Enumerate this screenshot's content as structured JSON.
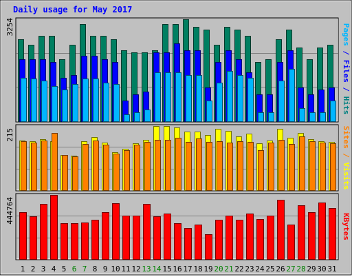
{
  "chart_data": {
    "type": "bar",
    "title": "Daily usage for May 2017",
    "categories": [
      "1",
      "2",
      "3",
      "4",
      "5",
      "6",
      "7",
      "8",
      "9",
      "10",
      "11",
      "12",
      "13",
      "14",
      "15",
      "16",
      "17",
      "18",
      "19",
      "20",
      "21",
      "22",
      "23",
      "24",
      "25",
      "26",
      "27",
      "28",
      "29",
      "30",
      "31"
    ],
    "weekend_days": [
      "6",
      "7",
      "13",
      "14",
      "20",
      "21",
      "27",
      "28"
    ],
    "panels": [
      {
        "id": "hits",
        "max_label": "3254",
        "ylim": [
          0,
          3254
        ],
        "axis_label": [
          {
            "text": "Pages",
            "color": "#00b6ff"
          },
          {
            "text": " / ",
            "color": "#0000ff"
          },
          {
            "text": "Files",
            "color": "#0000ff"
          },
          {
            "text": " / ",
            "color": "#0000ff"
          },
          {
            "text": "Hits",
            "color": "#008080"
          }
        ],
        "series": [
          {
            "name": "Hits",
            "color": "#007f61",
            "values": [
              2625,
              2447,
              2721,
              2721,
              1977,
              2447,
              3095,
              2721,
              2721,
              2625,
              2274,
              2196,
              2196,
              2274,
              3095,
              3095,
              3254,
              3016,
              2915,
              2447,
              3016,
              2915,
              2721,
              1899,
              1977,
              2625,
              2915,
              2351,
              1977,
              2351,
              2447
            ]
          },
          {
            "name": "Files",
            "color": "#0000ff",
            "values": [
              1977,
              1977,
              1977,
              1899,
              1395,
              1465,
              2084,
              2084,
              1977,
              1899,
              651,
              853,
              942,
              2196,
              2196,
              2476,
              2274,
              2274,
              1081,
              1899,
              2274,
              1977,
              1563,
              853,
              853,
              1899,
              2260,
              1081,
              853,
              1001,
              1081
            ]
          },
          {
            "name": "Pages",
            "color": "#00b6ff",
            "values": [
              1395,
              1353,
              1298,
              1116,
              1022,
              1197,
              1353,
              1353,
              1238,
              1197,
              229,
              296,
              367,
              1563,
              1563,
              1563,
              1465,
              1465,
              651,
              1238,
              1605,
              1465,
              1395,
              296,
              296,
              1298,
              1667,
              411,
              296,
              296,
              651
            ]
          }
        ]
      },
      {
        "id": "visits",
        "max_label": "215",
        "ylim": [
          0,
          215
        ],
        "axis_label": [
          {
            "text": "Sites",
            "color": "#ff8000"
          },
          {
            "text": " / ",
            "color": "#ff8000"
          },
          {
            "text": "Visits",
            "color": "#ffff00"
          }
        ],
        "series": [
          {
            "name": "Visits",
            "color": "#ffff00",
            "values": [
              167,
              163,
              172,
              165,
              117,
              115,
              165,
              178,
              159,
              128,
              139,
              158,
              169,
              215,
              215,
              211,
              196,
              196,
              185,
              205,
              199,
              181,
              189,
              158,
              167,
              205,
              176,
              193,
              171,
              163,
              161
            ]
          },
          {
            "name": "Sites",
            "color": "#ff8000",
            "values": [
              163,
              159,
              167,
              191,
              117,
              113,
              155,
              167,
              153,
              123,
              134,
              153,
              161,
              169,
              169,
              176,
              161,
              173,
              161,
              165,
              159,
              163,
              161,
              134,
              159,
              169,
              156,
              180,
              165,
              159,
              158
            ]
          }
        ]
      },
      {
        "id": "kbytes",
        "max_label": "444764",
        "ylim": [
          0,
          444764
        ],
        "axis_label": [
          {
            "text": "KBytes",
            "color": "#ff0000"
          }
        ],
        "series": [
          {
            "name": "KBytes",
            "color": "#ff0000",
            "values": [
              327350,
              298886,
              383049,
              444764,
              246871,
              246871,
              254293,
              270438,
              325873,
              387380,
              303235,
              303235,
              384290,
              298886,
              315331,
              246871,
              215180,
              237838,
              173498,
              270438,
              303235,
              270438,
              315331,
              275457,
              303235,
              409544,
              237838,
              375378,
              327350,
              390000,
              356000
            ]
          }
        ]
      }
    ]
  }
}
